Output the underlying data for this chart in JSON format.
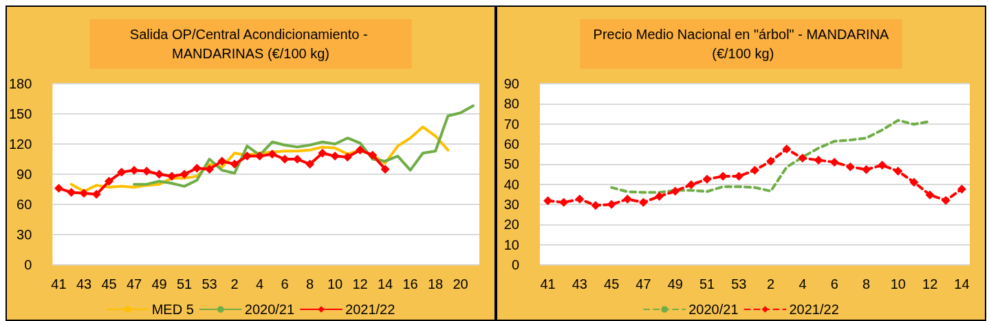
{
  "chart_data": [
    {
      "type": "line",
      "title": "Salida OP/Central Acondicionamiento - MANDARINAS (€/100 kg)",
      "categories": [
        "41",
        null,
        "43",
        null,
        "45",
        null,
        "47",
        null,
        "49",
        null,
        "51",
        null,
        "53",
        null,
        "2",
        null,
        "4",
        null,
        "6",
        null,
        "8",
        null,
        "10",
        null,
        "12",
        null,
        "14",
        null,
        "16",
        null,
        "18",
        null,
        "20",
        null
      ],
      "series": [
        {
          "name": "MED 5",
          "color": "#ffc000",
          "marker": "none",
          "values": [
            null,
            80,
            73,
            79,
            77,
            78,
            77,
            79,
            80,
            86,
            86,
            88,
            100,
            97,
            111,
            109,
            111,
            112,
            113,
            113,
            114,
            117,
            116,
            110,
            114,
            109,
            101,
            118,
            126,
            137,
            128,
            114,
            null,
            null
          ]
        },
        {
          "name": "2020/21",
          "color": "#70ad47",
          "marker": "none",
          "values": [
            null,
            null,
            null,
            null,
            null,
            null,
            80,
            80,
            83,
            81,
            78,
            84,
            105,
            94,
            91,
            118,
            109,
            122,
            119,
            117,
            119,
            122,
            120,
            126,
            121,
            105,
            103,
            108,
            94,
            111,
            113,
            148,
            151,
            158
          ]
        },
        {
          "name": "2021/22",
          "color": "#ff0000",
          "marker": "diamond",
          "values": [
            76,
            72,
            71,
            70,
            83,
            92,
            94,
            93,
            90,
            88,
            90,
            96,
            95,
            103,
            100,
            108,
            108,
            110,
            105,
            105,
            100,
            111,
            108,
            107,
            114,
            109,
            95,
            null,
            null,
            null,
            null,
            null,
            null,
            null
          ]
        }
      ],
      "ylim": [
        0,
        180
      ],
      "yticks": [
        0,
        30,
        60,
        90,
        120,
        150,
        180
      ],
      "grid": "y",
      "legend": "bottom",
      "line_style": "solid"
    },
    {
      "type": "line",
      "title": "Precio Medio Nacional en \"árbol\" - MANDARINA (€/100 kg)",
      "categories": [
        "41",
        null,
        "43",
        null,
        "45",
        null,
        "47",
        null,
        "49",
        null,
        "51",
        null,
        "53",
        null,
        "2",
        null,
        "4",
        null,
        "6",
        null,
        "8",
        null,
        "10",
        null,
        "12",
        null,
        "14"
      ],
      "series": [
        {
          "name": "2020/21",
          "color": "#70ad47",
          "marker": "none",
          "values": [
            null,
            null,
            null,
            null,
            38.4,
            36.3,
            36,
            36,
            37,
            37,
            36.4,
            38.8,
            38.8,
            38.4,
            36.6,
            48.5,
            53.5,
            58,
            61.4,
            62,
            63,
            67,
            71.8,
            69.8,
            71.3,
            null,
            null
          ]
        },
        {
          "name": "2021/22",
          "color": "#ff0000",
          "marker": "diamond",
          "values": [
            31.8,
            31,
            32.6,
            29.5,
            30,
            32.6,
            31,
            34,
            36.6,
            39.8,
            42.5,
            44,
            44,
            47,
            51.5,
            57.5,
            53,
            52,
            51,
            48.7,
            47.3,
            49.5,
            46.5,
            41,
            34.7,
            32,
            37.6
          ]
        }
      ],
      "ylim": [
        0,
        90
      ],
      "yticks": [
        0,
        10,
        20,
        30,
        40,
        50,
        60,
        70,
        80,
        90
      ],
      "grid": "y",
      "legend": "bottom",
      "line_style": "dashed"
    }
  ]
}
